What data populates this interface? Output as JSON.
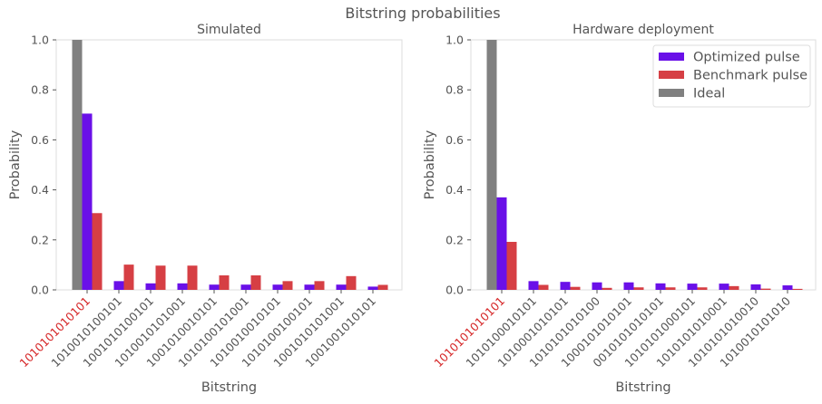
{
  "figure_title": "Bitstring probabilities",
  "colors": {
    "optimized": "#6a10e8",
    "benchmark": "#d63f44",
    "ideal": "#808080",
    "highlight_label": "#d62728",
    "text": "#555555",
    "spine": "#dddddd"
  },
  "legend": {
    "placement": "top-right",
    "entries": [
      "Optimized pulse",
      "Benchmark pulse",
      "Ideal"
    ]
  },
  "chart_data": [
    {
      "type": "bar",
      "title": "Simulated",
      "xlabel": "Bitstring",
      "ylabel": "Probability",
      "ylim": [
        0,
        1.0
      ],
      "yticks": [
        "0.0",
        "0.2",
        "0.4",
        "0.6",
        "0.8",
        "1.0"
      ],
      "categories": [
        "1010101010101",
        "1010010100101",
        "1001010100101",
        "1010010101001",
        "1001010010101",
        "1010100101001",
        "1010010010101",
        "1010100100101",
        "1001010101001",
        "1001001010101"
      ],
      "highlighted_category": 0,
      "series": [
        {
          "name": "Ideal",
          "values": [
            1.0,
            0,
            0,
            0,
            0,
            0,
            0,
            0,
            0,
            0
          ]
        },
        {
          "name": "Optimized pulse",
          "values": [
            0.705,
            0.035,
            0.026,
            0.026,
            0.021,
            0.021,
            0.021,
            0.021,
            0.021,
            0.013
          ]
        },
        {
          "name": "Benchmark pulse",
          "values": [
            0.307,
            0.101,
            0.097,
            0.097,
            0.058,
            0.058,
            0.035,
            0.035,
            0.055,
            0.02
          ]
        }
      ]
    },
    {
      "type": "bar",
      "title": "Hardware deployment",
      "xlabel": "Bitstring",
      "ylabel": "Probability",
      "ylim": [
        0,
        1.0
      ],
      "yticks": [
        "0.0",
        "0.2",
        "0.4",
        "0.6",
        "0.8",
        "1.0"
      ],
      "categories": [
        "1010101010101",
        "1010100010101",
        "1010001010101",
        "1010101010100",
        "1000101010101",
        "0010101010101",
        "1010101000101",
        "1010101010001",
        "1010101010010",
        "1010010101010"
      ],
      "highlighted_category": 0,
      "series": [
        {
          "name": "Ideal",
          "values": [
            1.0,
            0,
            0,
            0,
            0,
            0,
            0,
            0,
            0,
            0
          ]
        },
        {
          "name": "Optimized pulse",
          "values": [
            0.37,
            0.035,
            0.032,
            0.03,
            0.03,
            0.026,
            0.025,
            0.025,
            0.022,
            0.018
          ]
        },
        {
          "name": "Benchmark pulse",
          "values": [
            0.192,
            0.02,
            0.012,
            0.008,
            0.01,
            0.01,
            0.01,
            0.015,
            0.005,
            0.004
          ]
        }
      ]
    }
  ]
}
